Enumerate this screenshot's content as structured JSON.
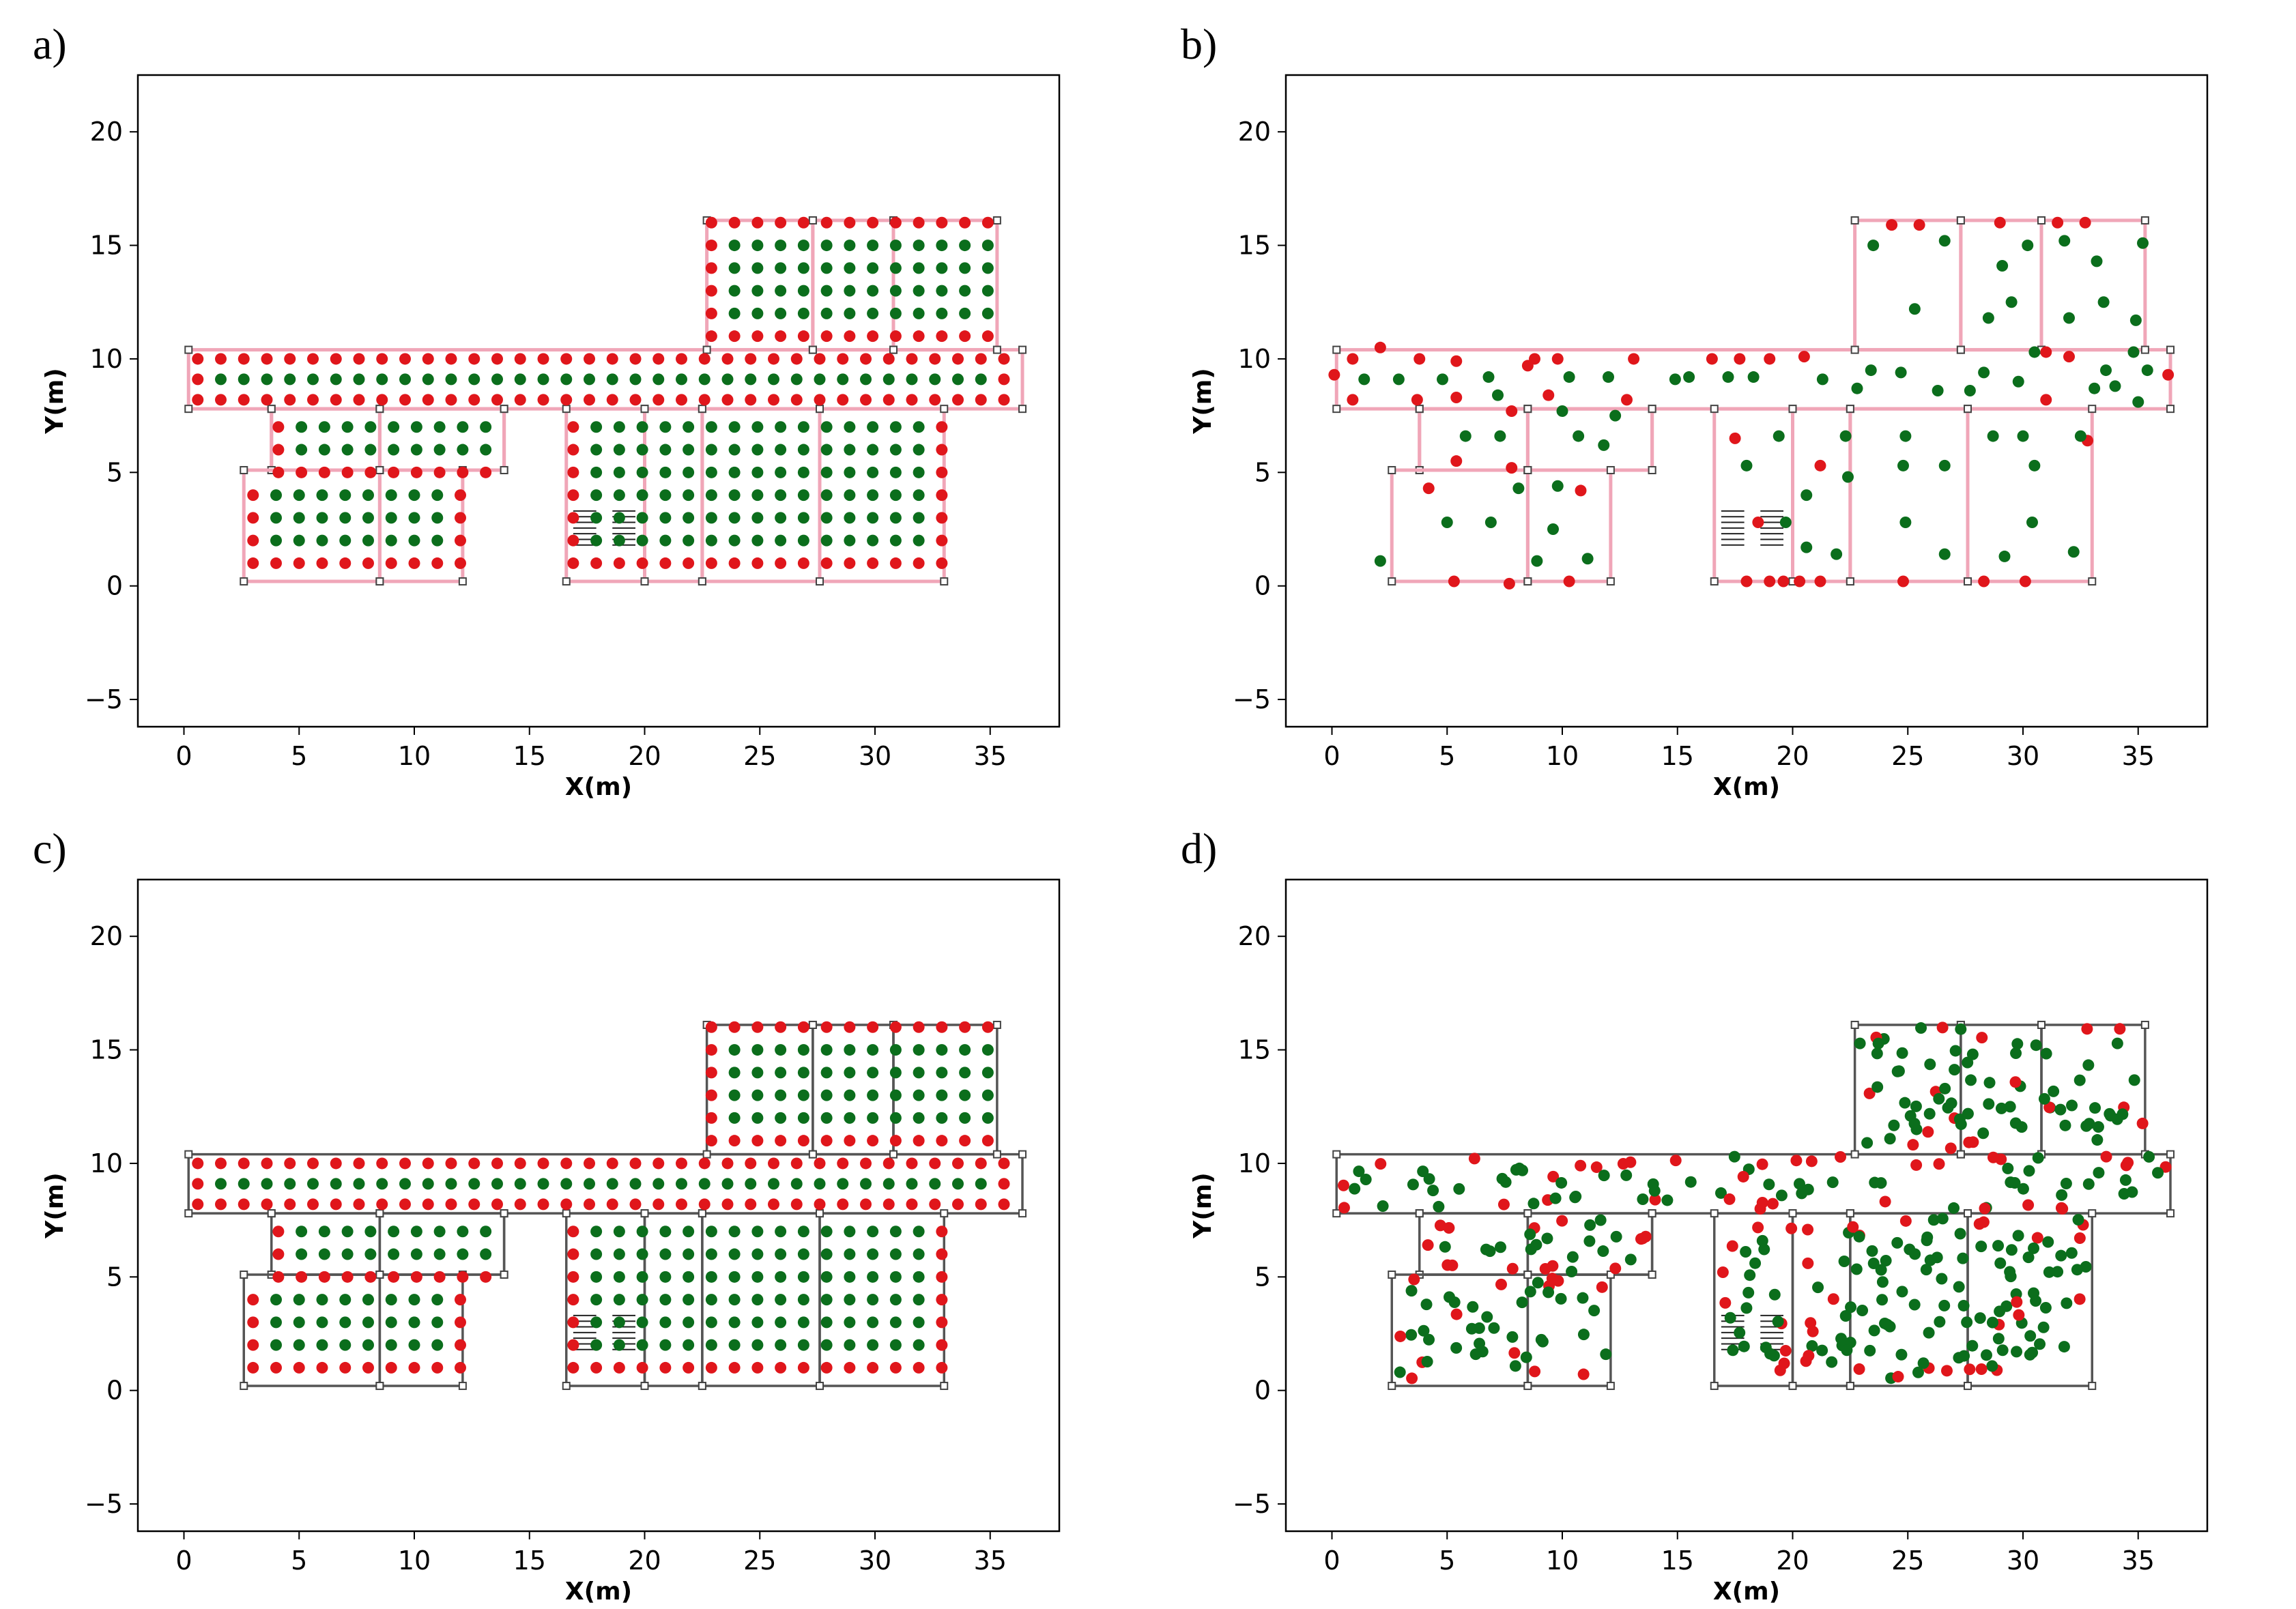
{
  "colors": {
    "feasible": "#0b6e1c",
    "infeasible": "#e0161b",
    "wall_gray": "#555555",
    "wall_pink": "#f0a6b8"
  },
  "chart_data": [
    {
      "panel_label": "a)",
      "type": "scatter",
      "wall_style": "pink",
      "xlabel": "X(m)",
      "ylabel": "Y(m)",
      "xlim": [
        -2,
        38
      ],
      "ylim": [
        -6.2,
        22.5
      ],
      "xticks": [
        0,
        5,
        10,
        15,
        20,
        25,
        30,
        35
      ],
      "yticks": [
        -5,
        0,
        5,
        10,
        15,
        20
      ],
      "layout": "regular_grid"
    },
    {
      "panel_label": "b)",
      "type": "scatter",
      "wall_style": "pink",
      "xlabel": "X(m)",
      "ylabel": "Y(m)",
      "xlim": [
        -2,
        38
      ],
      "ylim": [
        -6.2,
        22.5
      ],
      "xticks": [
        0,
        5,
        10,
        15,
        20,
        25,
        30,
        35
      ],
      "yticks": [
        -5,
        0,
        5,
        10,
        15,
        20
      ],
      "layout": "sparse",
      "points": [
        [
          0.1,
          9.3,
          1
        ],
        [
          0.9,
          10,
          1
        ],
        [
          2.1,
          10.5,
          1
        ],
        [
          3.8,
          10,
          1
        ],
        [
          0.9,
          8.2,
          1
        ],
        [
          3.7,
          8.2,
          1
        ],
        [
          5.4,
          9.9,
          1
        ],
        [
          8.8,
          10,
          1
        ],
        [
          9.8,
          10,
          1
        ],
        [
          13.1,
          10,
          1
        ],
        [
          16.5,
          10,
          1
        ],
        [
          17.7,
          10,
          1
        ],
        [
          19,
          10,
          1
        ],
        [
          20.5,
          10.1,
          1
        ],
        [
          31,
          10.3,
          1
        ],
        [
          32,
          10.1,
          1
        ],
        [
          36.3,
          9.3,
          1
        ],
        [
          31,
          8.2,
          1
        ],
        [
          24.3,
          15.9,
          1
        ],
        [
          25.5,
          15.9,
          1
        ],
        [
          29,
          16,
          1
        ],
        [
          31.5,
          16,
          1
        ],
        [
          32.7,
          16,
          1
        ],
        [
          5.4,
          8.3,
          1
        ],
        [
          5.4,
          5.5,
          1
        ],
        [
          7.8,
          5.2,
          1
        ],
        [
          7.8,
          7.7,
          1
        ],
        [
          8.5,
          9.7,
          1
        ],
        [
          9.4,
          8.4,
          1
        ],
        [
          12.8,
          8.2,
          1
        ],
        [
          4.2,
          4.3,
          1
        ],
        [
          10.8,
          4.2,
          1
        ],
        [
          5.3,
          0.2,
          1
        ],
        [
          7.7,
          0.1,
          1
        ],
        [
          10.3,
          0.2,
          1
        ],
        [
          17.5,
          6.5,
          1
        ],
        [
          18.5,
          2.8,
          1
        ],
        [
          18,
          0.2,
          1
        ],
        [
          19,
          0.2,
          1
        ],
        [
          19.6,
          0.2,
          1
        ],
        [
          20.3,
          0.2,
          1
        ],
        [
          21.2,
          0.2,
          1
        ],
        [
          24.8,
          0.2,
          1
        ],
        [
          28.3,
          0.2,
          1
        ],
        [
          30.1,
          0.2,
          1
        ],
        [
          21.2,
          5.3,
          1
        ],
        [
          32.8,
          6.4,
          1
        ],
        [
          1.4,
          9.1,
          0
        ],
        [
          2.9,
          9.1,
          0
        ],
        [
          4.8,
          9.1,
          0
        ],
        [
          6.8,
          9.2,
          0
        ],
        [
          7.2,
          8.4,
          0
        ],
        [
          10.3,
          9.2,
          0
        ],
        [
          12,
          9.2,
          0
        ],
        [
          14.9,
          9.1,
          0
        ],
        [
          15.5,
          9.2,
          0
        ],
        [
          17.2,
          9.2,
          0
        ],
        [
          18.3,
          9.2,
          0
        ],
        [
          21.3,
          9.1,
          0
        ],
        [
          22.8,
          8.7,
          0
        ],
        [
          23.4,
          9.5,
          0
        ],
        [
          24.7,
          9.4,
          0
        ],
        [
          26.3,
          8.6,
          0
        ],
        [
          27.7,
          8.6,
          0
        ],
        [
          28.3,
          9.4,
          0
        ],
        [
          29.8,
          9,
          0
        ],
        [
          30.5,
          10.3,
          0
        ],
        [
          33.1,
          8.7,
          0
        ],
        [
          33.6,
          9.5,
          0
        ],
        [
          34,
          8.8,
          0
        ],
        [
          35,
          8.1,
          0
        ],
        [
          35.4,
          9.5,
          0
        ],
        [
          23.5,
          15,
          0
        ],
        [
          25.3,
          12.2,
          0
        ],
        [
          26.6,
          15.2,
          0
        ],
        [
          29.1,
          14.1,
          0
        ],
        [
          30.2,
          15,
          0
        ],
        [
          29.5,
          12.5,
          0
        ],
        [
          28.5,
          11.8,
          0
        ],
        [
          31.8,
          15.2,
          0
        ],
        [
          33.2,
          14.3,
          0
        ],
        [
          32,
          11.8,
          0
        ],
        [
          33.5,
          12.5,
          0
        ],
        [
          34.9,
          11.7,
          0
        ],
        [
          35.2,
          15.1,
          0
        ],
        [
          34.8,
          10.3,
          0
        ],
        [
          5.8,
          6.6,
          0
        ],
        [
          7.3,
          6.6,
          0
        ],
        [
          10,
          7.7,
          0
        ],
        [
          10.7,
          6.6,
          0
        ],
        [
          11.8,
          6.2,
          0
        ],
        [
          12.3,
          7.5,
          0
        ],
        [
          8.1,
          4.3,
          0
        ],
        [
          9.8,
          4.4,
          0
        ],
        [
          5,
          2.8,
          0
        ],
        [
          6.9,
          2.8,
          0
        ],
        [
          8.9,
          1.1,
          0
        ],
        [
          9.6,
          2.5,
          0
        ],
        [
          2.1,
          1.1,
          0
        ],
        [
          11.1,
          1.2,
          0
        ],
        [
          18,
          5.3,
          0
        ],
        [
          19.4,
          6.6,
          0
        ],
        [
          19.7,
          2.8,
          0
        ],
        [
          20.6,
          4,
          0
        ],
        [
          20.6,
          1.7,
          0
        ],
        [
          21.9,
          1.4,
          0
        ],
        [
          22.3,
          6.6,
          0
        ],
        [
          22.4,
          4.8,
          0
        ],
        [
          24.9,
          6.6,
          0
        ],
        [
          24.8,
          5.3,
          0
        ],
        [
          24.9,
          2.8,
          0
        ],
        [
          26.6,
          5.3,
          0
        ],
        [
          26.6,
          1.4,
          0
        ],
        [
          28.7,
          6.6,
          0
        ],
        [
          30,
          6.6,
          0
        ],
        [
          29.2,
          1.3,
          0
        ],
        [
          30.5,
          5.3,
          0
        ],
        [
          30.4,
          2.8,
          0
        ],
        [
          32.5,
          6.6,
          0
        ],
        [
          32.2,
          1.5,
          0
        ]
      ]
    },
    {
      "panel_label": "c)",
      "type": "scatter",
      "wall_style": "gray",
      "xlabel": "X(m)",
      "ylabel": "Y(m)",
      "xlim": [
        -2,
        38
      ],
      "ylim": [
        -6.2,
        22.5
      ],
      "xticks": [
        0,
        5,
        10,
        15,
        20,
        25,
        30,
        35
      ],
      "yticks": [
        -5,
        0,
        5,
        10,
        15,
        20
      ],
      "layout": "regular_grid"
    },
    {
      "panel_label": "d)",
      "type": "scatter",
      "wall_style": "gray",
      "xlabel": "X(m)",
      "ylabel": "Y(m)",
      "xlim": [
        -2,
        38
      ],
      "ylim": [
        -6.2,
        22.5
      ],
      "xticks": [
        0,
        5,
        10,
        15,
        20,
        25,
        30,
        35
      ],
      "yticks": [
        -5,
        0,
        5,
        10,
        15,
        20
      ],
      "layout": "dense_random"
    }
  ]
}
